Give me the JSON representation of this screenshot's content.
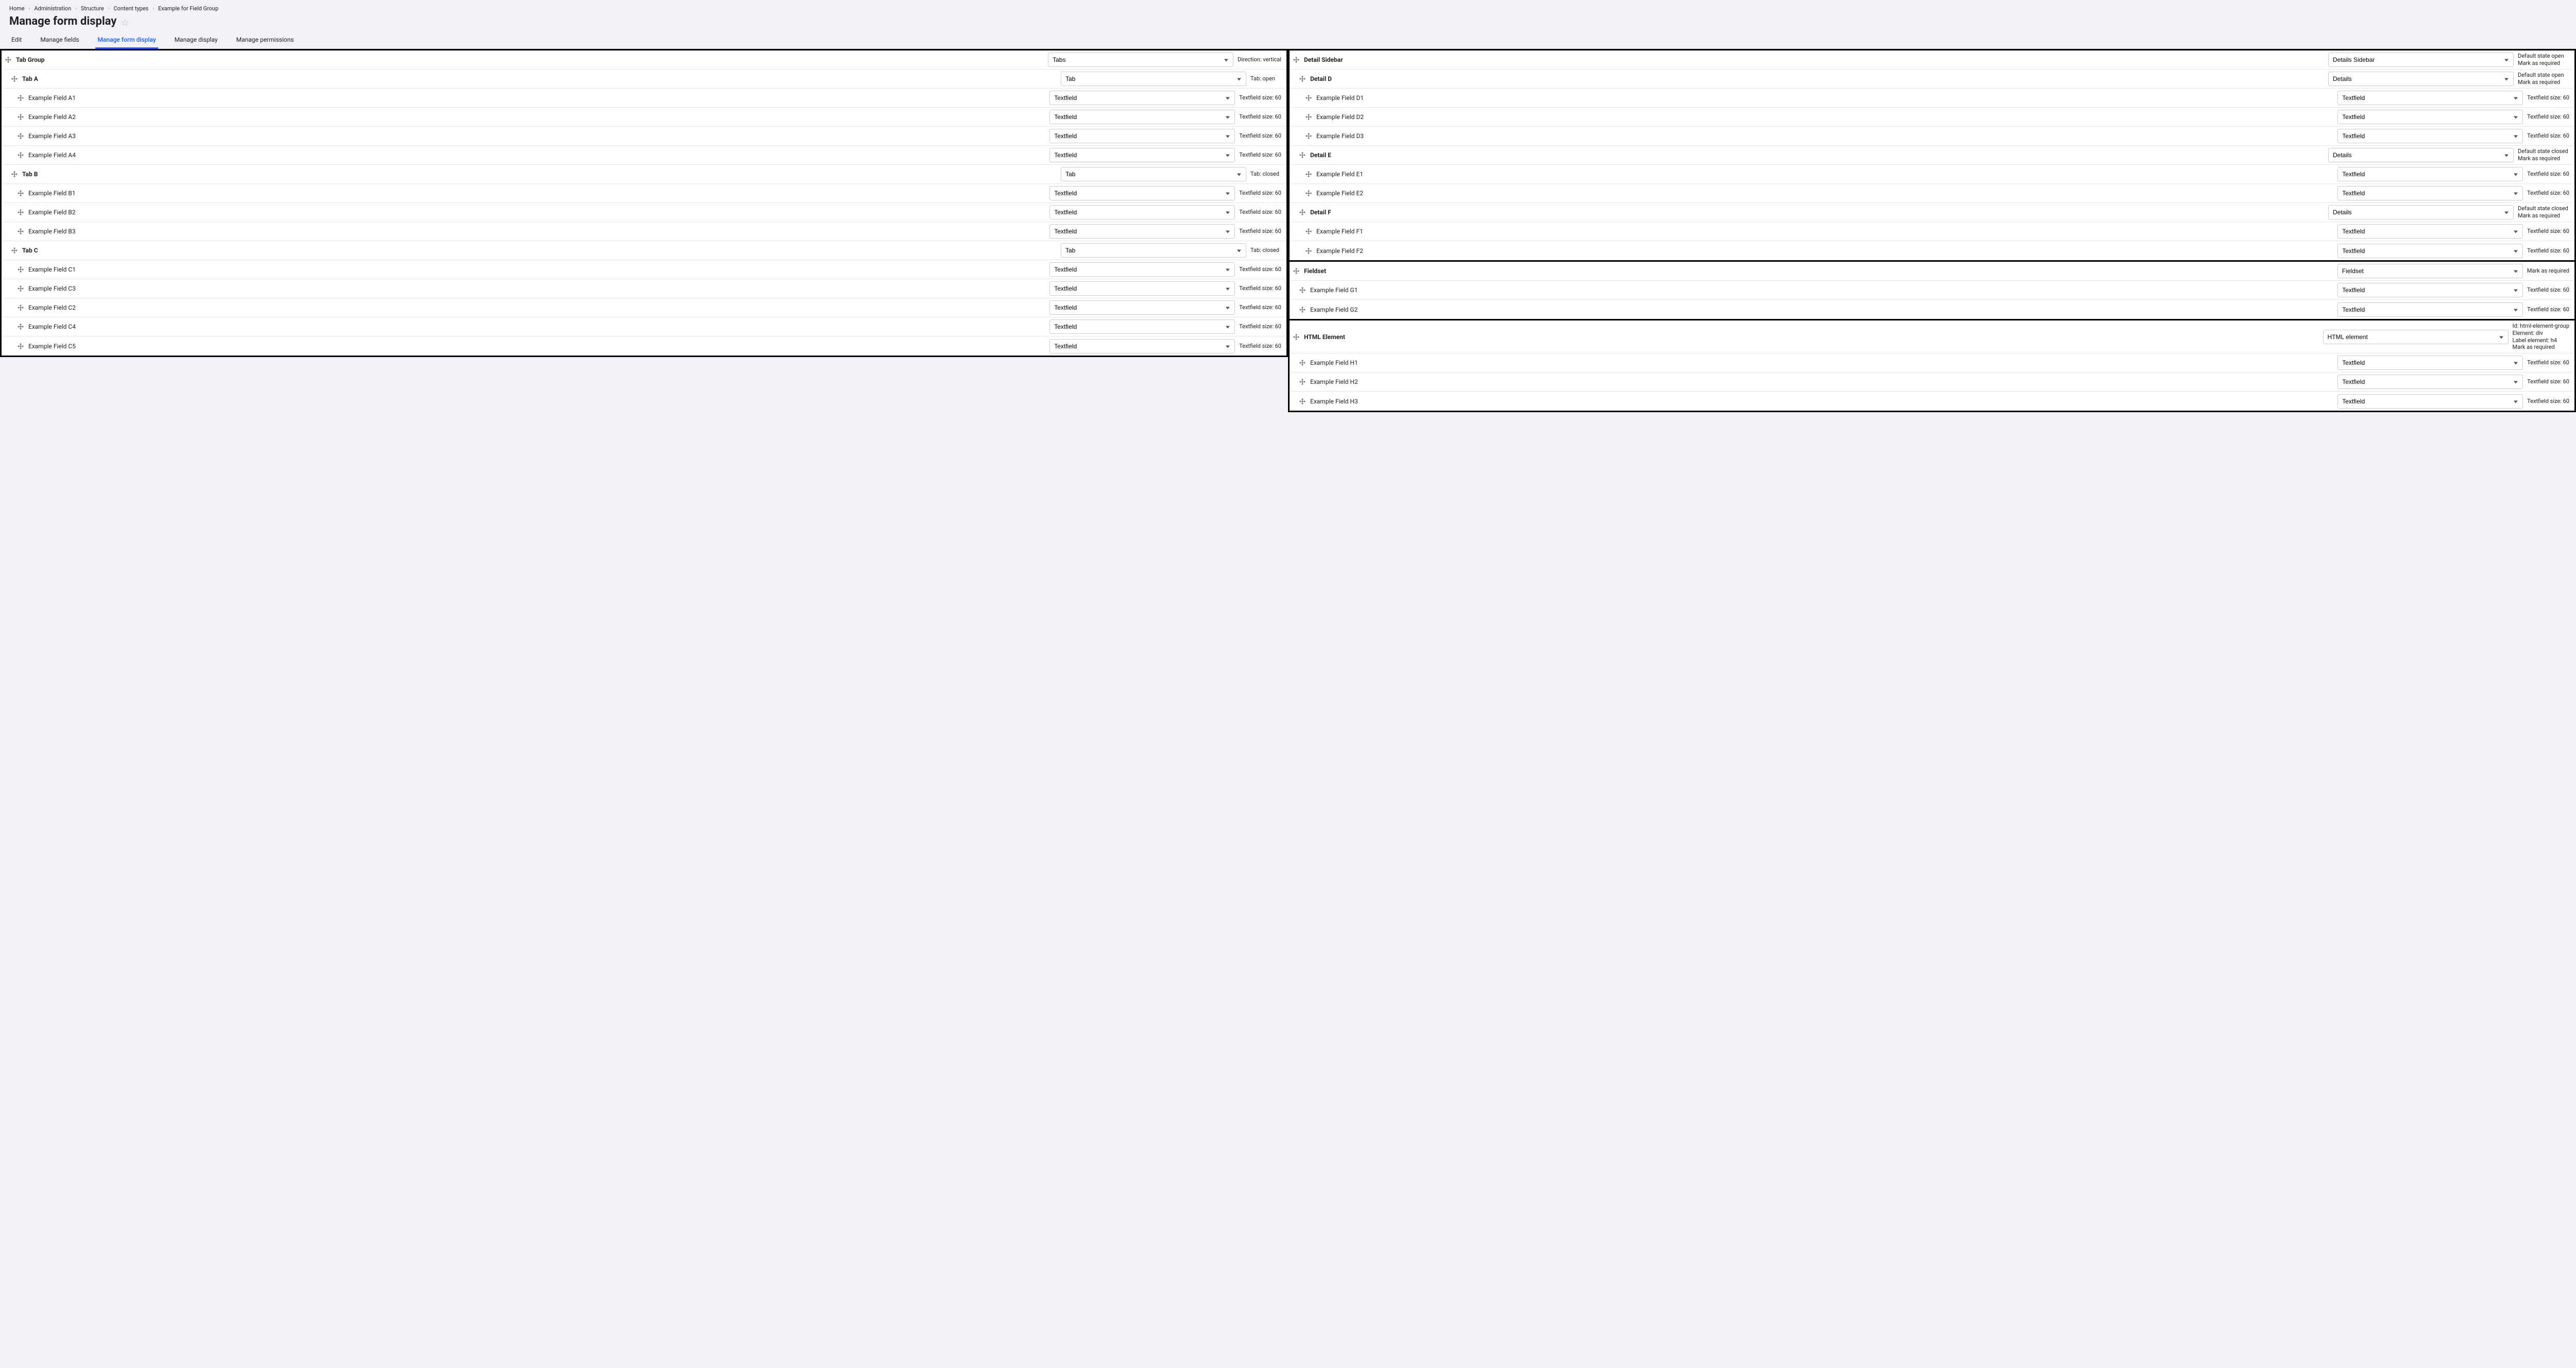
{
  "breadcrumb": [
    "Home",
    "Administration",
    "Structure",
    "Content types",
    "Example for Field Group"
  ],
  "page_title": "Manage form display",
  "tabs": [
    {
      "label": "Edit",
      "active": false
    },
    {
      "label": "Manage fields",
      "active": false
    },
    {
      "label": "Manage form display",
      "active": true
    },
    {
      "label": "Manage display",
      "active": false
    },
    {
      "label": "Manage permissions",
      "active": false
    }
  ],
  "left_panel": {
    "rows": [
      {
        "indent": 0,
        "bold": true,
        "label": "Tab Group",
        "widget": "Tabs",
        "summary": "Direction: vertical"
      },
      {
        "indent": 1,
        "bold": true,
        "label": "Tab A",
        "widget": "Tab",
        "summary": "Tab: open"
      },
      {
        "indent": 2,
        "bold": false,
        "label": "Example Field A1",
        "widget": "Textfield",
        "summary": "Textfield size: 60"
      },
      {
        "indent": 2,
        "bold": false,
        "label": "Example Field A2",
        "widget": "Textfield",
        "summary": "Textfield size: 60"
      },
      {
        "indent": 2,
        "bold": false,
        "label": "Example Field A3",
        "widget": "Textfield",
        "summary": "Textfield size: 60"
      },
      {
        "indent": 2,
        "bold": false,
        "label": "Example Field A4",
        "widget": "Textfield",
        "summary": "Textfield size: 60"
      },
      {
        "indent": 1,
        "bold": true,
        "label": "Tab B",
        "widget": "Tab",
        "summary": "Tab: closed"
      },
      {
        "indent": 2,
        "bold": false,
        "label": "Example Field B1",
        "widget": "Textfield",
        "summary": "Textfield size: 60"
      },
      {
        "indent": 2,
        "bold": false,
        "label": "Example Field B2",
        "widget": "Textfield",
        "summary": "Textfield size: 60"
      },
      {
        "indent": 2,
        "bold": false,
        "label": "Example Field B3",
        "widget": "Textfield",
        "summary": "Textfield size: 60"
      },
      {
        "indent": 1,
        "bold": true,
        "label": "Tab C",
        "widget": "Tab",
        "summary": "Tab: closed"
      },
      {
        "indent": 2,
        "bold": false,
        "label": "Example Field C1",
        "widget": "Textfield",
        "summary": "Textfield size: 60"
      },
      {
        "indent": 2,
        "bold": false,
        "label": "Example Field C3",
        "widget": "Textfield",
        "summary": "Textfield size: 60"
      },
      {
        "indent": 2,
        "bold": false,
        "label": "Example Field C2",
        "widget": "Textfield",
        "summary": "Textfield size: 60"
      },
      {
        "indent": 2,
        "bold": false,
        "label": "Example Field C4",
        "widget": "Textfield",
        "summary": "Textfield size: 60"
      },
      {
        "indent": 2,
        "bold": false,
        "label": "Example Field C5",
        "widget": "Textfield",
        "summary": "Textfield size: 60"
      }
    ]
  },
  "right_panels": [
    {
      "rows": [
        {
          "indent": 0,
          "bold": true,
          "label": "Detail Sidebar",
          "widget": "Details Sidebar",
          "summary": "Default state open\nMark as required"
        },
        {
          "indent": 1,
          "bold": true,
          "label": "Detail D",
          "widget": "Details",
          "summary": "Default state open\nMark as required"
        },
        {
          "indent": 2,
          "bold": false,
          "label": "Example Field D1",
          "widget": "Textfield",
          "summary": "Textfield size: 60"
        },
        {
          "indent": 2,
          "bold": false,
          "label": "Example Field D2",
          "widget": "Textfield",
          "summary": "Textfield size: 60"
        },
        {
          "indent": 2,
          "bold": false,
          "label": "Example Field D3",
          "widget": "Textfield",
          "summary": "Textfield size: 60"
        },
        {
          "indent": 1,
          "bold": true,
          "label": "Detail E",
          "widget": "Details",
          "summary": "Default state closed\nMark as required"
        },
        {
          "indent": 2,
          "bold": false,
          "label": "Example Field E1",
          "widget": "Textfield",
          "summary": "Textfield size: 60"
        },
        {
          "indent": 2,
          "bold": false,
          "label": "Example Field E2",
          "widget": "Textfield",
          "summary": "Textfield size: 60"
        },
        {
          "indent": 1,
          "bold": true,
          "label": "Detail F",
          "widget": "Details",
          "summary": "Default state closed\nMark as required"
        },
        {
          "indent": 2,
          "bold": false,
          "label": "Example Field F1",
          "widget": "Textfield",
          "summary": "Textfield size: 60"
        },
        {
          "indent": 2,
          "bold": false,
          "label": "Example Field F2",
          "widget": "Textfield",
          "summary": "Textfield size: 60"
        }
      ]
    },
    {
      "rows": [
        {
          "indent": 0,
          "bold": true,
          "label": "Fieldset",
          "widget": "Fieldset",
          "summary": "Mark as required"
        },
        {
          "indent": 1,
          "bold": false,
          "label": "Example Field G1",
          "widget": "Textfield",
          "summary": "Textfield size: 60"
        },
        {
          "indent": 1,
          "bold": false,
          "label": "Example Field G2",
          "widget": "Textfield",
          "summary": "Textfield size: 60"
        }
      ]
    },
    {
      "rows": [
        {
          "indent": 0,
          "bold": true,
          "label": "HTML Element",
          "widget": "HTML element",
          "summary": "Id: html-element-group\nElement: div\nLabel element: h4\nMark as required"
        },
        {
          "indent": 1,
          "bold": false,
          "label": "Example Field H1",
          "widget": "Textfield",
          "summary": "Textfield size: 60"
        },
        {
          "indent": 1,
          "bold": false,
          "label": "Example Field H2",
          "widget": "Textfield",
          "summary": "Textfield size: 60"
        },
        {
          "indent": 1,
          "bold": false,
          "label": "Example Field H3",
          "widget": "Textfield",
          "summary": "Textfield size: 60"
        }
      ]
    }
  ]
}
